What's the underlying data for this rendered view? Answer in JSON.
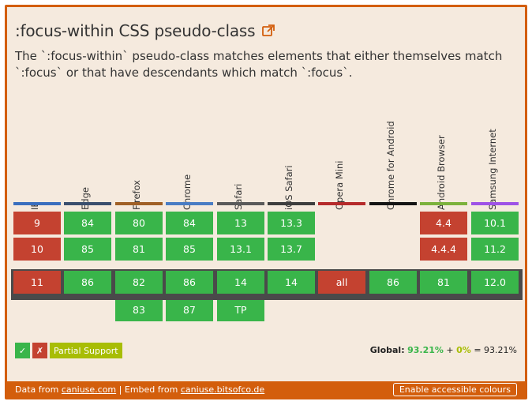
{
  "header": {
    "title": ":focus-within CSS pseudo-class",
    "description": "The `:focus-within` pseudo-class matches elements that either themselves match `:focus` or that have descendants which match `:focus`."
  },
  "browsers": [
    {
      "name": "IE",
      "color": "#3a6fbe"
    },
    {
      "name": "Edge",
      "color": "#3a4f6e"
    },
    {
      "name": "Firefox",
      "color": "#a06026"
    },
    {
      "name": "Chrome",
      "color": "#4a7dc4"
    },
    {
      "name": "Safari",
      "color": "#5a5a5a"
    },
    {
      "name": "iOS Safari",
      "color": "#3e3e3e"
    },
    {
      "name": "Opera Mini",
      "color": "#b52b2b"
    },
    {
      "name": "Chrome for Android",
      "color": "#141414"
    },
    {
      "name": "Android Browser",
      "color": "#7cb23c"
    },
    {
      "name": "Samsung Internet",
      "color": "#9e52e6"
    }
  ],
  "support": {
    "past2": [
      {
        "v": "9",
        "s": "n"
      },
      {
        "v": "84",
        "s": "y"
      },
      {
        "v": "80",
        "s": "y"
      },
      {
        "v": "84",
        "s": "y"
      },
      {
        "v": "13",
        "s": "y"
      },
      {
        "v": "13.3",
        "s": "y"
      },
      null,
      null,
      {
        "v": "4.4",
        "s": "n"
      },
      {
        "v": "10.1",
        "s": "y"
      }
    ],
    "past1": [
      {
        "v": "10",
        "s": "n"
      },
      {
        "v": "85",
        "s": "y"
      },
      {
        "v": "81",
        "s": "y"
      },
      {
        "v": "85",
        "s": "y"
      },
      {
        "v": "13.1",
        "s": "y"
      },
      {
        "v": "13.7",
        "s": "y"
      },
      null,
      null,
      {
        "v": "4.4.4",
        "s": "n"
      },
      {
        "v": "11.2",
        "s": "y"
      }
    ],
    "current": [
      {
        "v": "11",
        "s": "n"
      },
      {
        "v": "86",
        "s": "y"
      },
      {
        "v": "82",
        "s": "y"
      },
      {
        "v": "86",
        "s": "y"
      },
      {
        "v": "14",
        "s": "y"
      },
      {
        "v": "14",
        "s": "y"
      },
      {
        "v": "all",
        "s": "n"
      },
      {
        "v": "86",
        "s": "y"
      },
      {
        "v": "81",
        "s": "y"
      },
      {
        "v": "12.0",
        "s": "y"
      }
    ],
    "future": [
      null,
      null,
      {
        "v": "83",
        "s": "y"
      },
      {
        "v": "87",
        "s": "y"
      },
      {
        "v": "TP",
        "s": "y"
      },
      null,
      null,
      null,
      null,
      null
    ]
  },
  "legend": {
    "supported_symbol": "✓",
    "unsupported_symbol": "✗",
    "partial_label": "Partial Support"
  },
  "global": {
    "label": "Global:",
    "supported": "93.21%",
    "plus": "+",
    "partial": "0%",
    "equals": "=",
    "total": "93.21%"
  },
  "footer": {
    "data_from_text": "Data from",
    "data_from_link": "caniuse.com",
    "separator": "|",
    "embed_from_text": "Embed from",
    "embed_from_link": "caniuse.bitsofco.de",
    "accessible_button": "Enable accessible colours"
  },
  "colors": {
    "supported": "#39b54a",
    "unsupported": "#c44230",
    "partial": "#a8bd04",
    "accent": "#d35e0c"
  }
}
